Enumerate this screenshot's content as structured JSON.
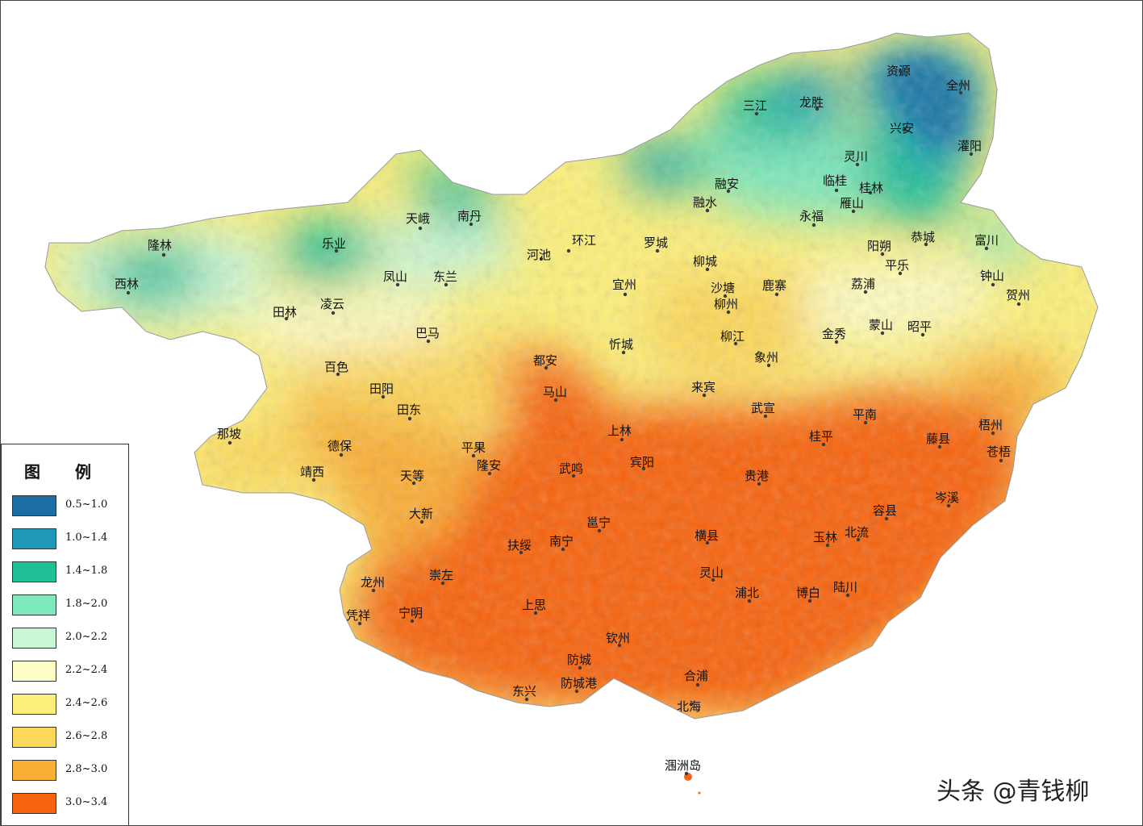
{
  "legend": {
    "title": "图 例",
    "items": [
      {
        "label": "0.5~1.0",
        "color": "#1a6ea3"
      },
      {
        "label": "1.0~1.4",
        "color": "#1e97b8"
      },
      {
        "label": "1.4~1.8",
        "color": "#1fbf98"
      },
      {
        "label": "1.8~2.0",
        "color": "#7ee8bc"
      },
      {
        "label": "2.0~2.2",
        "color": "#c9f7d6"
      },
      {
        "label": "2.2~2.4",
        "color": "#fdfdc6"
      },
      {
        "label": "2.4~2.6",
        "color": "#fdf07a"
      },
      {
        "label": "2.6~2.8",
        "color": "#fdd75a"
      },
      {
        "label": "2.8~3.0",
        "color": "#fbae34"
      },
      {
        "label": "3.0~3.4",
        "color": "#f8630f"
      }
    ]
  },
  "places": [
    {
      "name": "资源"
    },
    {
      "name": "全州"
    },
    {
      "name": "三江"
    },
    {
      "name": "龙胜"
    },
    {
      "name": "兴安"
    },
    {
      "name": "灌阳"
    },
    {
      "name": "灵川"
    },
    {
      "name": "临桂"
    },
    {
      "name": "桂林"
    },
    {
      "name": "融安"
    },
    {
      "name": "融水"
    },
    {
      "name": "雁山"
    },
    {
      "name": "永福"
    },
    {
      "name": "天峨"
    },
    {
      "name": "南丹"
    },
    {
      "name": "隆林"
    },
    {
      "name": "乐业"
    },
    {
      "name": "环江"
    },
    {
      "name": "罗城"
    },
    {
      "name": "阳朔"
    },
    {
      "name": "恭城"
    },
    {
      "name": "富川"
    },
    {
      "name": "河池"
    },
    {
      "name": "平乐"
    },
    {
      "name": "凤山"
    },
    {
      "name": "东兰"
    },
    {
      "name": "柳城"
    },
    {
      "name": "西林"
    },
    {
      "name": "钟山"
    },
    {
      "name": "宜州"
    },
    {
      "name": "沙塘"
    },
    {
      "name": "鹿寨"
    },
    {
      "name": "荔浦"
    },
    {
      "name": "柳州"
    },
    {
      "name": "贺州"
    },
    {
      "name": "田林"
    },
    {
      "name": "凌云"
    },
    {
      "name": "蒙山"
    },
    {
      "name": "昭平"
    },
    {
      "name": "巴马"
    },
    {
      "name": "柳江"
    },
    {
      "name": "金秀"
    },
    {
      "name": "忻城"
    },
    {
      "name": "象州"
    },
    {
      "name": "百色"
    },
    {
      "name": "都安"
    },
    {
      "name": "田阳"
    },
    {
      "name": "马山"
    },
    {
      "name": "来宾"
    },
    {
      "name": "田东"
    },
    {
      "name": "武宣"
    },
    {
      "name": "平南"
    },
    {
      "name": "那坡"
    },
    {
      "name": "上林"
    },
    {
      "name": "桂平"
    },
    {
      "name": "梧州"
    },
    {
      "name": "藤县"
    },
    {
      "name": "德保"
    },
    {
      "name": "平果"
    },
    {
      "name": "苍梧"
    },
    {
      "name": "隆安"
    },
    {
      "name": "宾阳"
    },
    {
      "name": "靖西"
    },
    {
      "name": "武鸣"
    },
    {
      "name": "贵港"
    },
    {
      "name": "天等"
    },
    {
      "name": "岑溪"
    },
    {
      "name": "大新"
    },
    {
      "name": "容县"
    },
    {
      "name": "邕宁"
    },
    {
      "name": "北流"
    },
    {
      "name": "横县"
    },
    {
      "name": "扶绥"
    },
    {
      "name": "南宁"
    },
    {
      "name": "玉林"
    },
    {
      "name": "崇左"
    },
    {
      "name": "龙州"
    },
    {
      "name": "灵山"
    },
    {
      "name": "浦北"
    },
    {
      "name": "博白"
    },
    {
      "name": "陆川"
    },
    {
      "name": "上思"
    },
    {
      "name": "凭祥"
    },
    {
      "name": "宁明"
    },
    {
      "name": "钦州"
    },
    {
      "name": "防城"
    },
    {
      "name": "合浦"
    },
    {
      "name": "防城港"
    },
    {
      "name": "东兴"
    },
    {
      "name": "北海"
    },
    {
      "name": "涠洲岛"
    }
  ],
  "watermark": "头条 @青钱柳"
}
